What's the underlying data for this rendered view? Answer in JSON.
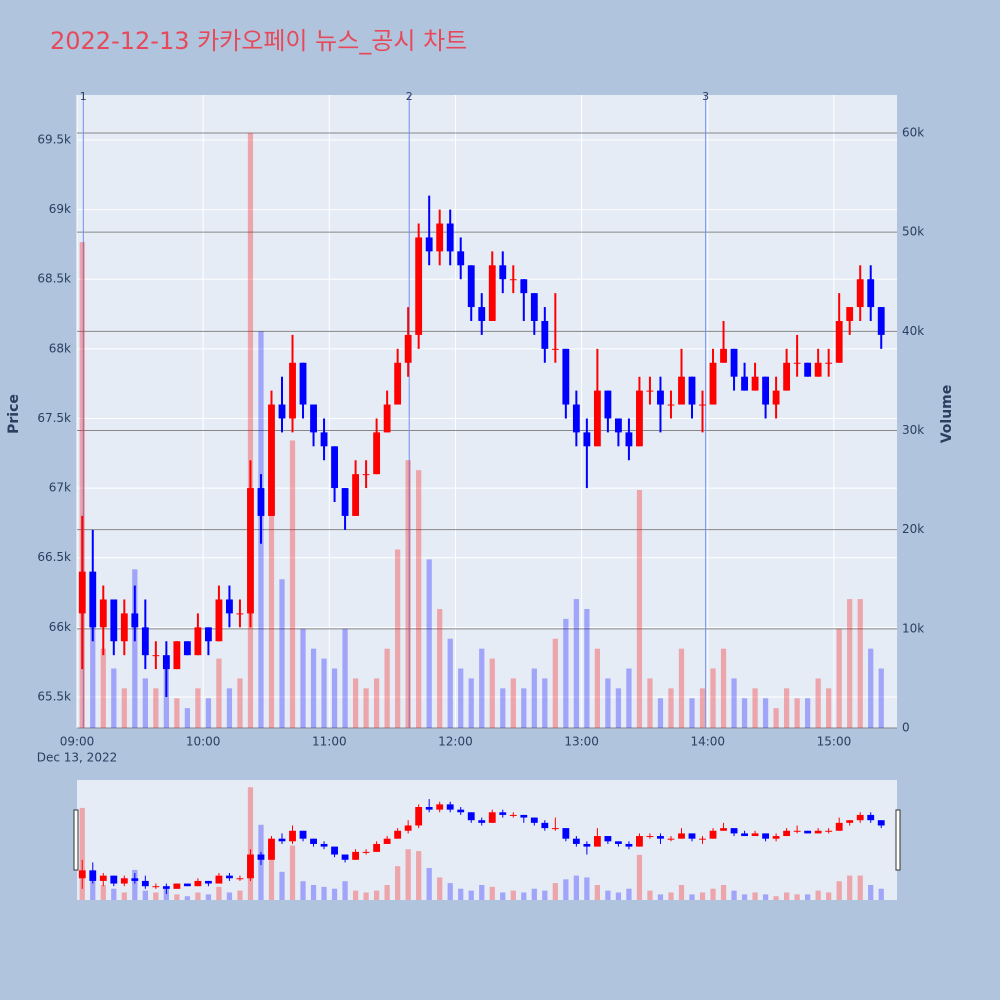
{
  "chart_data": {
    "type": "candlestick",
    "title": "2022-12-13 카카오페이 뉴스_공시 차트",
    "x": [
      "09:00",
      "09:05",
      "09:10",
      "09:15",
      "09:20",
      "09:25",
      "09:30",
      "09:35",
      "09:40",
      "09:45",
      "09:50",
      "09:55",
      "10:00",
      "10:05",
      "10:10",
      "10:15",
      "10:20",
      "10:25",
      "10:30",
      "10:35",
      "10:40",
      "10:45",
      "10:50",
      "10:55",
      "11:00",
      "11:05",
      "11:10",
      "11:15",
      "11:20",
      "11:25",
      "11:30",
      "11:35",
      "11:40",
      "11:45",
      "11:50",
      "11:55",
      "12:00",
      "12:05",
      "12:10",
      "12:15",
      "12:20",
      "12:25",
      "12:30",
      "12:35",
      "12:40",
      "12:45",
      "12:50",
      "12:55",
      "13:00",
      "13:05",
      "13:10",
      "13:15",
      "13:20",
      "13:25",
      "13:30",
      "13:35",
      "13:40",
      "13:45",
      "13:50",
      "13:55",
      "14:00",
      "14:05",
      "14:10",
      "14:15",
      "14:20",
      "14:25",
      "14:30",
      "14:35",
      "14:40",
      "14:45",
      "14:50",
      "14:55",
      "15:00",
      "15:05",
      "15:10",
      "15:15",
      "15:20"
    ],
    "open": [
      66100,
      66400,
      66000,
      66200,
      65900,
      66100,
      66000,
      65800,
      65800,
      65700,
      65900,
      65800,
      66000,
      65900,
      66200,
      66100,
      66100,
      67000,
      66800,
      67600,
      67500,
      67900,
      67600,
      67400,
      67300,
      67000,
      66800,
      67100,
      67100,
      67400,
      67600,
      67900,
      68100,
      68800,
      68700,
      68900,
      68700,
      68600,
      68300,
      68200,
      68600,
      68500,
      68500,
      68400,
      68200,
      68000,
      68000,
      67600,
      67400,
      67300,
      67700,
      67500,
      67400,
      67300,
      67700,
      67700,
      67600,
      67600,
      67800,
      67600,
      67600,
      67900,
      68000,
      67800,
      67700,
      67800,
      67600,
      67700,
      67900,
      67900,
      67800,
      67900,
      67900,
      68200,
      68300,
      68500,
      68300
    ],
    "high": [
      66800,
      66700,
      66300,
      66200,
      66200,
      66300,
      66200,
      65900,
      65900,
      65900,
      65900,
      66100,
      66000,
      66300,
      66300,
      66200,
      67200,
      67100,
      67700,
      67800,
      68100,
      67900,
      67600,
      67500,
      67300,
      67000,
      67200,
      67200,
      67500,
      67700,
      68000,
      68300,
      68900,
      69100,
      69000,
      69000,
      68800,
      68600,
      68400,
      68700,
      68700,
      68600,
      68500,
      68400,
      68300,
      68400,
      68000,
      67700,
      67500,
      68000,
      67700,
      67500,
      67500,
      67800,
      67800,
      67800,
      67700,
      68000,
      67800,
      67700,
      68000,
      68200,
      68000,
      67900,
      67900,
      67800,
      67800,
      68000,
      68100,
      67900,
      68000,
      68000,
      68400,
      68300,
      68600,
      68600,
      68300
    ],
    "low": [
      65700,
      65900,
      65800,
      65800,
      65800,
      65900,
      65700,
      65700,
      65500,
      65700,
      65800,
      65800,
      65800,
      65900,
      66000,
      66000,
      66000,
      66600,
      66800,
      67400,
      67400,
      67500,
      67300,
      67200,
      66900,
      66700,
      66800,
      67000,
      67100,
      67400,
      67600,
      67800,
      68000,
      68600,
      68600,
      68600,
      68500,
      68200,
      68100,
      68200,
      68400,
      68400,
      68200,
      68100,
      67900,
      67900,
      67500,
      67300,
      67000,
      67300,
      67400,
      67300,
      67200,
      67300,
      67600,
      67400,
      67500,
      67600,
      67500,
      67400,
      67600,
      67900,
      67700,
      67700,
      67700,
      67500,
      67500,
      67700,
      67800,
      67800,
      67800,
      67800,
      67900,
      68100,
      68200,
      68200,
      68000
    ],
    "close": [
      66400,
      66000,
      66200,
      65900,
      66100,
      66000,
      65800,
      65800,
      65700,
      65900,
      65800,
      66000,
      65900,
      66200,
      66100,
      66100,
      67000,
      66800,
      67600,
      67500,
      67900,
      67600,
      67400,
      67300,
      67000,
      66800,
      67100,
      67100,
      67400,
      67600,
      67900,
      68100,
      68800,
      68700,
      68900,
      68700,
      68600,
      68300,
      68200,
      68600,
      68500,
      68500,
      68400,
      68200,
      68000,
      68000,
      67600,
      67400,
      67300,
      67700,
      67500,
      67400,
      67300,
      67700,
      67700,
      67600,
      67600,
      67800,
      67600,
      67600,
      67900,
      68000,
      67800,
      67700,
      67800,
      67600,
      67700,
      67900,
      67900,
      67800,
      67900,
      67900,
      68200,
      68300,
      68500,
      68300,
      68100
    ],
    "volume": [
      49000,
      15000,
      8000,
      6000,
      4000,
      16000,
      5000,
      4000,
      7000,
      3000,
      2000,
      4000,
      3000,
      7000,
      4000,
      5000,
      60000,
      40000,
      22000,
      15000,
      29000,
      10000,
      8000,
      7000,
      6000,
      10000,
      5000,
      4000,
      5000,
      8000,
      18000,
      27000,
      26000,
      17000,
      12000,
      9000,
      6000,
      5000,
      8000,
      7000,
      4000,
      5000,
      4000,
      6000,
      5000,
      9000,
      11000,
      13000,
      12000,
      8000,
      5000,
      4000,
      6000,
      24000,
      5000,
      3000,
      4000,
      8000,
      3000,
      4000,
      6000,
      8000,
      5000,
      3000,
      4000,
      3000,
      2000,
      4000,
      3000,
      3000,
      5000,
      4000,
      10000,
      13000,
      13000,
      8000,
      6000
    ],
    "increasing_color": "#ff0000",
    "decreasing_color": "#0000ff",
    "xlim": [
      "09:00",
      "15:30"
    ],
    "xticks": [
      "09:00",
      "10:00",
      "11:00",
      "12:00",
      "13:00",
      "14:00",
      "15:00"
    ],
    "x_date_label": "Dec 13, 2022",
    "ylim": [
      65277,
      69823
    ],
    "yticks": [
      {
        "value": 65500,
        "label": "65.5k"
      },
      {
        "value": 66000,
        "label": "66k"
      },
      {
        "value": 66500,
        "label": "66.5k"
      },
      {
        "value": 67000,
        "label": "67k"
      },
      {
        "value": 67500,
        "label": "67.5k"
      },
      {
        "value": 68000,
        "label": "68k"
      },
      {
        "value": 68500,
        "label": "68.5k"
      },
      {
        "value": 69000,
        "label": "69k"
      },
      {
        "value": 69500,
        "label": "69.5k"
      }
    ],
    "y2lim": [
      0,
      63830
    ],
    "y2ticks": [
      0,
      {
        "value": 10000,
        "label": "10k"
      },
      {
        "value": 20000,
        "label": "20k"
      },
      {
        "value": 30000,
        "label": "30k"
      },
      {
        "value": 40000,
        "label": "40k"
      },
      {
        "value": 50000,
        "label": "50k"
      },
      {
        "value": 60000,
        "label": "60k"
      }
    ],
    "ylabel": "Price",
    "y2label": "Volume",
    "annotations": [
      {
        "x": "09:03",
        "text": "1"
      },
      {
        "x": "11:38",
        "text": "2"
      },
      {
        "x": "13:59",
        "text": "3"
      }
    ],
    "rangeslider": true
  }
}
